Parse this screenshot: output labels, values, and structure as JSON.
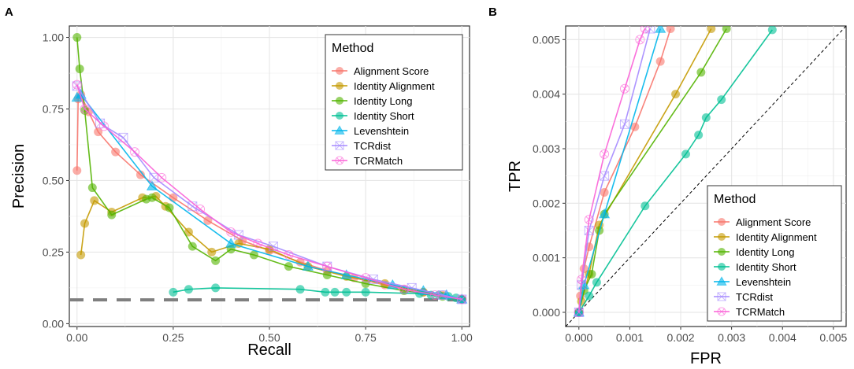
{
  "chart_data": [
    {
      "panel": "A",
      "type": "line",
      "xlabel": "Recall",
      "ylabel": "Precision",
      "xlim": [
        -0.02,
        1.02
      ],
      "ylim": [
        -0.01,
        1.04
      ],
      "xticks": [
        0,
        0.25,
        0.5,
        0.75,
        1
      ],
      "xtick_labels": [
        "0.00",
        "0.25",
        "0.50",
        "0.75",
        "1.00"
      ],
      "yticks": [
        0,
        0.25,
        0.5,
        0.75,
        1
      ],
      "ytick_labels": [
        "0.00",
        "0.25",
        "0.50",
        "0.75",
        "1.00"
      ],
      "reference_line": {
        "type": "horizontal",
        "y": 0.083,
        "style": "dashed"
      },
      "legend_title": "Method",
      "legend_position": "top-right",
      "series": [
        {
          "name": "Alignment Score",
          "color": "#F8766D",
          "marker": "circle",
          "points": [
            [
              0.0,
              0.535
            ],
            [
              0.003,
              0.785
            ],
            [
              0.01,
              0.8
            ],
            [
              0.03,
              0.74
            ],
            [
              0.055,
              0.67
            ],
            [
              0.1,
              0.6
            ],
            [
              0.165,
              0.52
            ],
            [
              0.25,
              0.44
            ],
            [
              0.34,
              0.36
            ],
            [
              0.43,
              0.29
            ],
            [
              0.5,
              0.255
            ],
            [
              0.58,
              0.215
            ],
            [
              0.65,
              0.185
            ],
            [
              0.72,
              0.16
            ],
            [
              0.8,
              0.135
            ],
            [
              0.85,
              0.12
            ],
            [
              0.9,
              0.11
            ],
            [
              0.95,
              0.1
            ],
            [
              1.0,
              0.085
            ]
          ]
        },
        {
          "name": "Identity Alignment",
          "color": "#C49A00",
          "marker": "circle",
          "points": [
            [
              0.01,
              0.24
            ],
            [
              0.02,
              0.35
            ],
            [
              0.045,
              0.43
            ],
            [
              0.09,
              0.39
            ],
            [
              0.17,
              0.44
            ],
            [
              0.205,
              0.445
            ],
            [
              0.23,
              0.41
            ],
            [
              0.29,
              0.32
            ],
            [
              0.35,
              0.25
            ],
            [
              0.42,
              0.28
            ],
            [
              0.5,
              0.26
            ],
            [
              0.6,
              0.2
            ],
            [
              0.7,
              0.165
            ],
            [
              0.8,
              0.14
            ],
            [
              0.9,
              0.11
            ],
            [
              1.0,
              0.085
            ]
          ]
        },
        {
          "name": "Identity Long",
          "color": "#53B400",
          "marker": "circle",
          "points": [
            [
              0.0,
              1.0
            ],
            [
              0.007,
              0.89
            ],
            [
              0.02,
              0.745
            ],
            [
              0.04,
              0.475
            ],
            [
              0.09,
              0.38
            ],
            [
              0.18,
              0.435
            ],
            [
              0.195,
              0.44
            ],
            [
              0.24,
              0.405
            ],
            [
              0.3,
              0.27
            ],
            [
              0.36,
              0.22
            ],
            [
              0.4,
              0.26
            ],
            [
              0.46,
              0.24
            ],
            [
              0.55,
              0.2
            ],
            [
              0.65,
              0.17
            ],
            [
              0.75,
              0.14
            ],
            [
              0.85,
              0.115
            ],
            [
              0.95,
              0.095
            ],
            [
              1.0,
              0.085
            ]
          ]
        },
        {
          "name": "Identity Short",
          "color": "#00C094",
          "marker": "circle",
          "points": [
            [
              0.25,
              0.11
            ],
            [
              0.29,
              0.12
            ],
            [
              0.36,
              0.125
            ],
            [
              0.58,
              0.12
            ],
            [
              0.645,
              0.11
            ],
            [
              0.67,
              0.11
            ],
            [
              0.7,
              0.11
            ],
            [
              0.75,
              0.11
            ],
            [
              0.89,
              0.105
            ],
            [
              0.92,
              0.1
            ],
            [
              0.94,
              0.1
            ],
            [
              0.965,
              0.095
            ],
            [
              0.985,
              0.09
            ],
            [
              1.0,
              0.085
            ]
          ]
        },
        {
          "name": "Levenshtein",
          "color": "#00B6EB",
          "marker": "triangle",
          "points": [
            [
              0.0,
              0.79
            ],
            [
              0.01,
              0.8
            ],
            [
              0.195,
              0.48
            ],
            [
              0.4,
              0.28
            ],
            [
              0.6,
              0.2
            ],
            [
              0.7,
              0.17
            ],
            [
              0.82,
              0.135
            ],
            [
              0.9,
              0.115
            ],
            [
              0.96,
              0.1
            ],
            [
              1.0,
              0.085
            ]
          ]
        },
        {
          "name": "TCRdist",
          "color": "#A58AFF",
          "marker": "square-x",
          "points": [
            [
              0.0,
              0.83
            ],
            [
              0.06,
              0.7
            ],
            [
              0.12,
              0.65
            ],
            [
              0.2,
              0.51
            ],
            [
              0.3,
              0.41
            ],
            [
              0.42,
              0.31
            ],
            [
              0.51,
              0.27
            ],
            [
              0.65,
              0.2
            ],
            [
              0.77,
              0.155
            ],
            [
              0.87,
              0.125
            ],
            [
              0.95,
              0.1
            ],
            [
              1.0,
              0.085
            ]
          ]
        },
        {
          "name": "TCRMatch",
          "color": "#FB61D7",
          "marker": "circle-x",
          "points": [
            [
              0.0,
              0.835
            ],
            [
              0.02,
              0.75
            ],
            [
              0.07,
              0.69
            ],
            [
              0.15,
              0.6
            ],
            [
              0.22,
              0.51
            ],
            [
              0.32,
              0.4
            ],
            [
              0.4,
              0.32
            ],
            [
              0.47,
              0.28
            ],
            [
              0.55,
              0.24
            ],
            [
              0.65,
              0.2
            ],
            [
              0.75,
              0.16
            ],
            [
              0.85,
              0.12
            ],
            [
              0.93,
              0.1
            ],
            [
              1.0,
              0.085
            ]
          ]
        }
      ]
    },
    {
      "panel": "B",
      "type": "line",
      "xlabel": "FPR",
      "ylabel": "TPR",
      "xlim": [
        -0.00026,
        0.00525
      ],
      "ylim": [
        -0.00026,
        0.00525
      ],
      "xticks": [
        0,
        0.001,
        0.002,
        0.003,
        0.004,
        0.005
      ],
      "xtick_labels": [
        "0.000",
        "0.001",
        "0.002",
        "0.003",
        "0.004",
        "0.005"
      ],
      "yticks": [
        0,
        0.001,
        0.002,
        0.003,
        0.004,
        0.005
      ],
      "ytick_labels": [
        "0.000",
        "0.001",
        "0.002",
        "0.003",
        "0.004",
        "0.005"
      ],
      "reference_line": {
        "type": "diagonal",
        "style": "dotted"
      },
      "legend_title": "Method",
      "legend_position": "bottom-right",
      "series": [
        {
          "name": "Alignment Score",
          "color": "#F8766D",
          "marker": "circle",
          "points": [
            [
              0,
              0
            ],
            [
              3e-05,
              0.0003
            ],
            [
              0.0001,
              0.0008
            ],
            [
              0.0002,
              0.0012
            ],
            [
              0.0005,
              0.0022
            ],
            [
              0.0011,
              0.0034
            ],
            [
              0.0016,
              0.0046
            ],
            [
              0.0018,
              0.0052
            ]
          ]
        },
        {
          "name": "Identity Alignment",
          "color": "#C49A00",
          "marker": "circle",
          "points": [
            [
              0,
              0
            ],
            [
              5e-05,
              0.0002
            ],
            [
              0.0002,
              0.0007
            ],
            [
              0.0004,
              0.0016
            ],
            [
              0.0019,
              0.004
            ],
            [
              0.0026,
              0.0052
            ]
          ]
        },
        {
          "name": "Identity Long",
          "color": "#53B400",
          "marker": "circle",
          "points": [
            [
              0,
              0
            ],
            [
              0.0001,
              0.0004
            ],
            [
              0.00025,
              0.0007
            ],
            [
              0.0004,
              0.0015
            ],
            [
              0.0005,
              0.0018
            ],
            [
              0.0024,
              0.0044
            ],
            [
              0.0029,
              0.0052
            ]
          ]
        },
        {
          "name": "Identity Short",
          "color": "#00C094",
          "marker": "circle",
          "points": [
            [
              0,
              0
            ],
            [
              0.0002,
              0.0003
            ],
            [
              0.00035,
              0.00055
            ],
            [
              0.0013,
              0.00195
            ],
            [
              0.0021,
              0.0029
            ],
            [
              0.00235,
              0.00325
            ],
            [
              0.0025,
              0.00357
            ],
            [
              0.0028,
              0.0039
            ],
            [
              0.0038,
              0.00518
            ]
          ]
        },
        {
          "name": "Levenshtein",
          "color": "#00B6EB",
          "marker": "triangle",
          "points": [
            [
              0,
              0
            ],
            [
              0.0001,
              0.0005
            ],
            [
              0.0005,
              0.0018
            ],
            [
              0.0016,
              0.0052
            ]
          ]
        },
        {
          "name": "TCRdist",
          "color": "#A58AFF",
          "marker": "square-x",
          "points": [
            [
              0,
              0
            ],
            [
              5e-05,
              0.0005
            ],
            [
              0.0002,
              0.0015
            ],
            [
              0.0005,
              0.0025
            ],
            [
              0.0009,
              0.00345
            ],
            [
              0.0014,
              0.0052
            ]
          ]
        },
        {
          "name": "TCRMatch",
          "color": "#FB61D7",
          "marker": "circle-x",
          "points": [
            [
              0,
              0
            ],
            [
              5e-05,
              0.0006
            ],
            [
              0.0002,
              0.0017
            ],
            [
              0.0005,
              0.0029
            ],
            [
              0.0009,
              0.0041
            ],
            [
              0.0012,
              0.005
            ],
            [
              0.0013,
              0.0052
            ]
          ]
        }
      ]
    }
  ]
}
